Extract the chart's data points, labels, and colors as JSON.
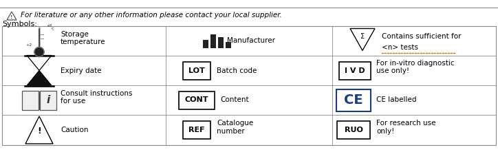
{
  "title_line": "For literature or any other information please contact your local supplier.",
  "symbols_label": "Symbols:",
  "bg_color": "#ffffff",
  "border_color": "#000000",
  "text_color": "#000000",
  "orange_color": "#c87800",
  "blue_color": "#1a3a8a",
  "rows": [
    {
      "col1_label": "Storage\ntemperature",
      "col2_label": "Manufacturer",
      "col3_label": "Contains sufficient for\n<n> tests"
    },
    {
      "col1_label": "Expiry date",
      "col2_label": "Batch code",
      "col3_label": "For in-vitro diagnostic\nuse only!"
    },
    {
      "col1_label": "Consult instructions\nfor use",
      "col2_label": "Content",
      "col3_label": "CE labelled"
    },
    {
      "col1_label": "Caution",
      "col2_label": "Catalogue\nnumber",
      "col3_label": "For research use\nonly!"
    }
  ]
}
